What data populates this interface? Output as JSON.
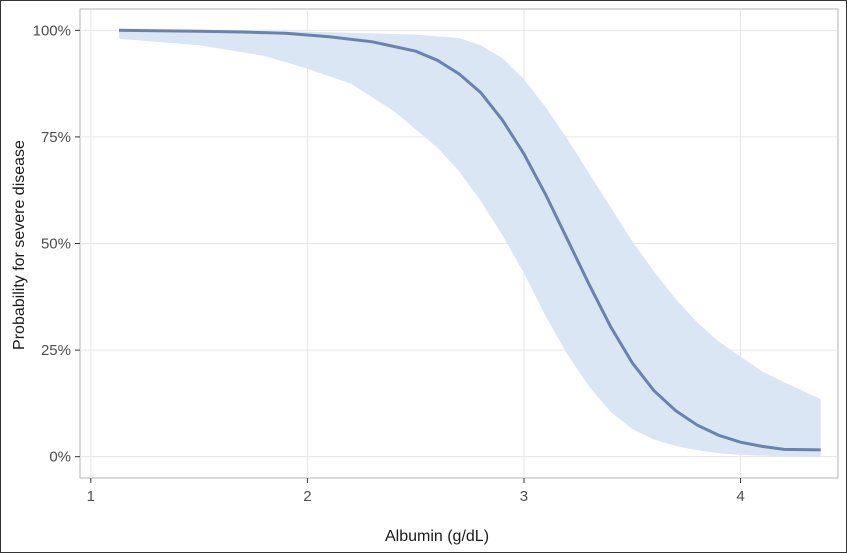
{
  "chart_data": {
    "type": "line",
    "title": "",
    "xlabel": "Albumin (g/dL)",
    "ylabel": "Probability for severe disease",
    "xlim": [
      0.95,
      4.45
    ],
    "ylim": [
      -0.05,
      1.05
    ],
    "x_ticks": [
      1,
      2,
      3,
      4
    ],
    "x_tick_labels": [
      "1",
      "2",
      "3",
      "4"
    ],
    "y_ticks": [
      0,
      0.25,
      0.5,
      0.75,
      1.0
    ],
    "y_tick_labels": [
      "0%",
      "25%",
      "50%",
      "75%",
      "100%"
    ],
    "grid": true,
    "legend": "none",
    "series": [
      {
        "role": "estimate",
        "color": "#6a82ad",
        "x": [
          1.13,
          1.3,
          1.5,
          1.7,
          1.9,
          2.1,
          2.3,
          2.5,
          2.6,
          2.7,
          2.8,
          2.9,
          3.0,
          3.1,
          3.2,
          3.3,
          3.4,
          3.5,
          3.6,
          3.7,
          3.8,
          3.9,
          4.0,
          4.1,
          4.2,
          4.37
        ],
        "y": [
          1.0,
          0.999,
          0.998,
          0.996,
          0.993,
          0.985,
          0.973,
          0.951,
          0.93,
          0.898,
          0.854,
          0.79,
          0.71,
          0.615,
          0.51,
          0.405,
          0.305,
          0.22,
          0.155,
          0.108,
          0.074,
          0.05,
          0.034,
          0.024,
          0.017,
          0.016
        ]
      },
      {
        "role": "ci_upper",
        "color": "#dbe6f5",
        "x": [
          1.13,
          1.5,
          2.0,
          2.5,
          2.7,
          2.8,
          2.9,
          3.0,
          3.1,
          3.2,
          3.3,
          3.4,
          3.5,
          3.6,
          3.7,
          3.8,
          3.9,
          4.0,
          4.1,
          4.2,
          4.37
        ],
        "y": [
          1.0,
          1.0,
          0.997,
          0.99,
          0.982,
          0.965,
          0.935,
          0.885,
          0.82,
          0.745,
          0.665,
          0.585,
          0.505,
          0.435,
          0.37,
          0.315,
          0.27,
          0.235,
          0.2,
          0.175,
          0.135
        ]
      },
      {
        "role": "ci_lower",
        "color": "#dbe6f5",
        "x": [
          1.13,
          1.5,
          1.8,
          2.0,
          2.2,
          2.4,
          2.6,
          2.7,
          2.8,
          2.9,
          3.0,
          3.1,
          3.2,
          3.3,
          3.4,
          3.5,
          3.6,
          3.7,
          3.8,
          3.9,
          4.0,
          4.2,
          4.37
        ],
        "y": [
          0.98,
          0.965,
          0.94,
          0.91,
          0.875,
          0.81,
          0.725,
          0.67,
          0.6,
          0.52,
          0.43,
          0.33,
          0.24,
          0.165,
          0.105,
          0.065,
          0.04,
          0.025,
          0.015,
          0.008,
          0.004,
          0.001,
          0.0
        ]
      }
    ]
  }
}
